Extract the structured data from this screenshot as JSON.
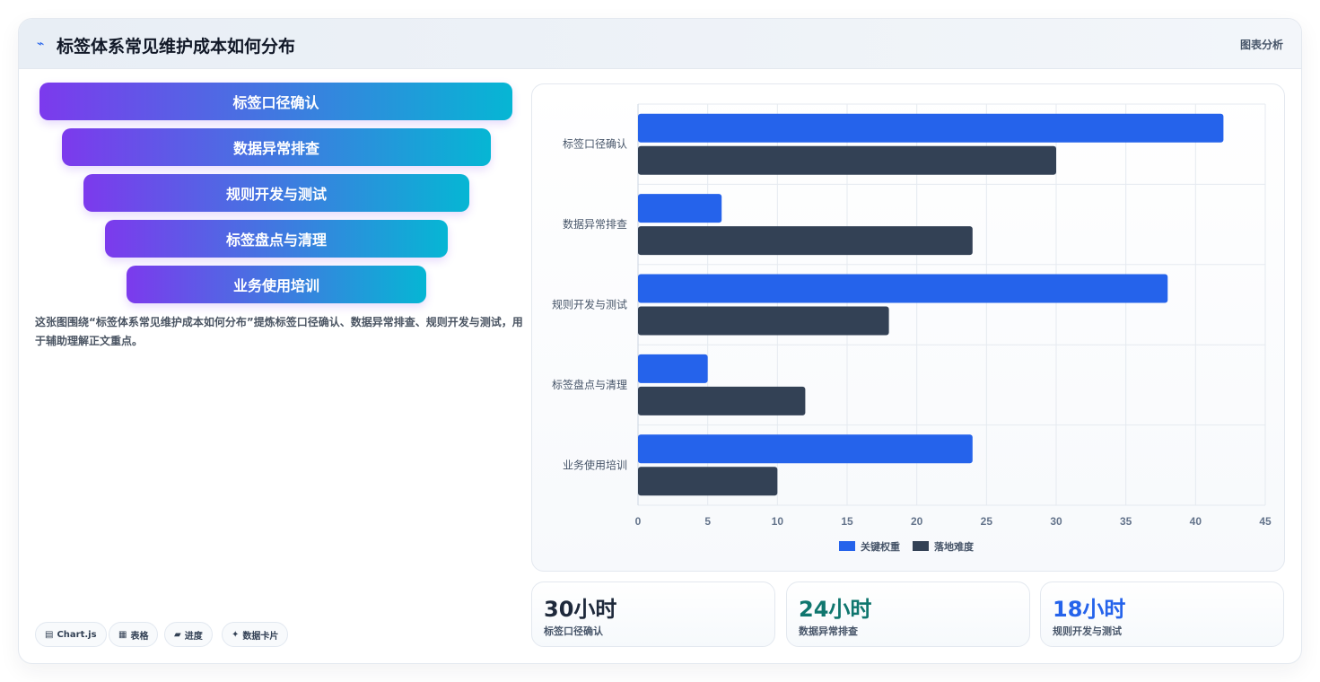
{
  "header": {
    "title": "标签体系常见维护成本如何分布",
    "icon": "wave-icon",
    "link_label": "图表分析"
  },
  "funnel": {
    "items": [
      "标签口径确认",
      "数据异常排查",
      "规则开发与测试",
      "标签盘点与清理",
      "业务使用培训"
    ],
    "gradient": [
      "#7c3aed",
      "#06b6d4"
    ]
  },
  "description": "这张图围绕“标签体系常见维护成本如何分布”提炼标签口径确认、数据异常排查、规则开发与测试，用于辅助理解正文重点。",
  "tags": [
    {
      "icon": "▤",
      "label": "Chart.js"
    },
    {
      "icon": "▦",
      "label": "表格"
    },
    {
      "icon": "▰",
      "label": "进度"
    },
    {
      "icon": "✦",
      "label": "数据卡片"
    }
  ],
  "stats": [
    {
      "value": "30小时",
      "label": "标签口径确认",
      "color": "#1e293b"
    },
    {
      "value": "24小时",
      "label": "数据异常排查",
      "color": "#0f766e"
    },
    {
      "value": "18小时",
      "label": "规则开发与测试",
      "color": "#2563eb"
    }
  ],
  "chart_data": {
    "type": "bar",
    "orientation": "horizontal",
    "categories": [
      "标签口径确认",
      "数据异常排查",
      "规则开发与测试",
      "标签盘点与清理",
      "业务使用培训"
    ],
    "series": [
      {
        "name": "关键权重",
        "values": [
          42,
          6,
          38,
          5,
          24
        ],
        "color": "#2563eb"
      },
      {
        "name": "落地难度",
        "values": [
          30,
          24,
          18,
          12,
          10
        ],
        "color": "#334155"
      }
    ],
    "xlim": [
      0,
      45
    ],
    "xticks": [
      0,
      5,
      10,
      15,
      20,
      25,
      30,
      35,
      40,
      45
    ],
    "grid": true,
    "legend_position": "bottom"
  }
}
